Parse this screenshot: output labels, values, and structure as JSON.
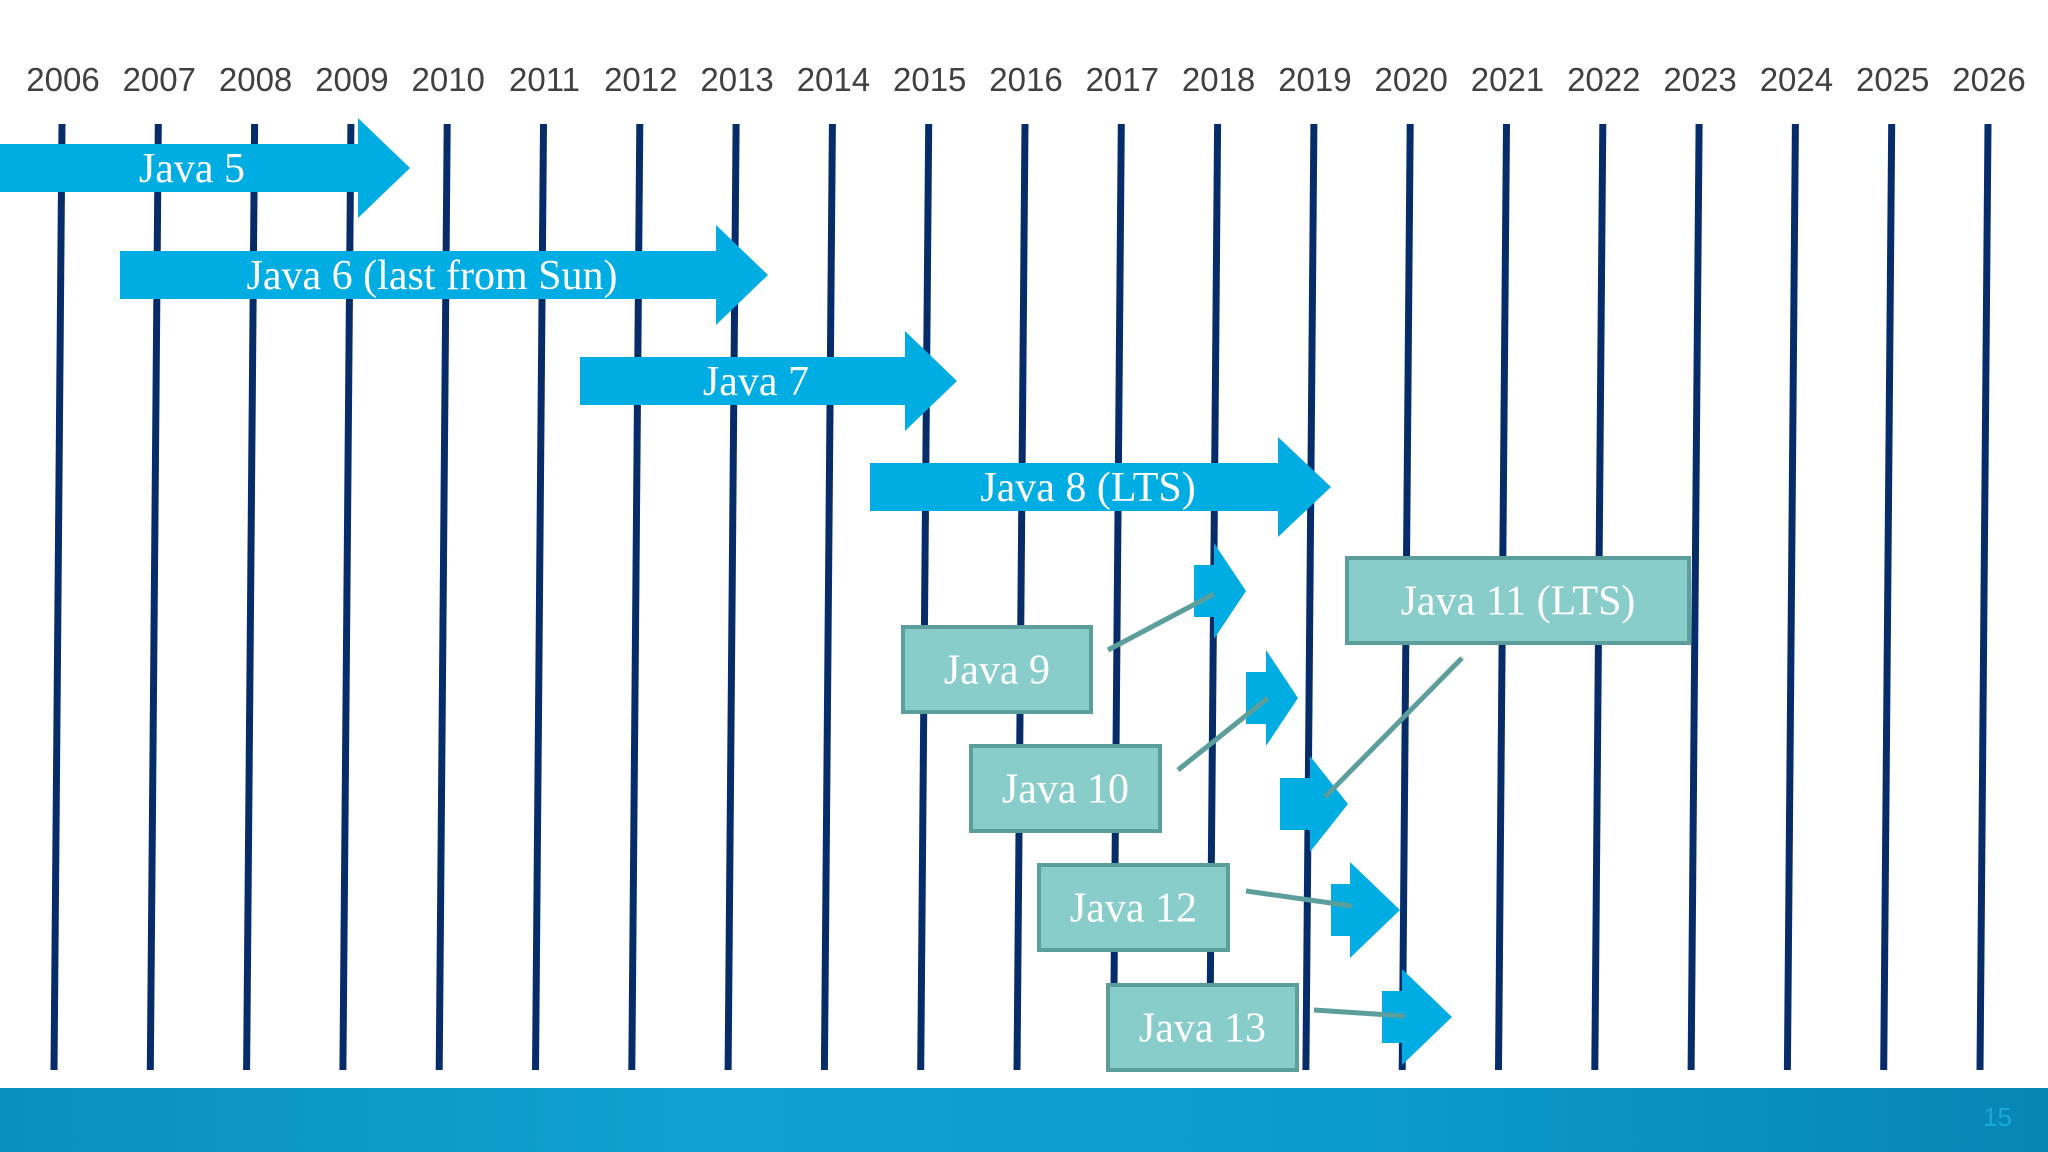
{
  "timeline": {
    "years": [
      "2006",
      "2007",
      "2008",
      "2009",
      "2010",
      "2011",
      "2012",
      "2013",
      "2014",
      "2015",
      "2016",
      "2017",
      "2018",
      "2019",
      "2020",
      "2021",
      "2022",
      "2023",
      "2024",
      "2025",
      "2026"
    ],
    "releases_long": [
      {
        "name": "java-5",
        "label": "Java 5"
      },
      {
        "name": "java-6",
        "label": "Java 6 (last from Sun)"
      },
      {
        "name": "java-7",
        "label": "Java 7"
      },
      {
        "name": "java-8",
        "label": "Java 8 (LTS)"
      }
    ],
    "releases_short": [
      {
        "name": "java-9",
        "label": "Java 9"
      },
      {
        "name": "java-10",
        "label": "Java 10"
      },
      {
        "name": "java-11",
        "label": "Java 11 (LTS)"
      },
      {
        "name": "java-12",
        "label": "Java 12"
      },
      {
        "name": "java-13",
        "label": "Java 13"
      }
    ]
  },
  "colors": {
    "gridline": "#062c6a",
    "arrow": "#00ade2",
    "callout_fill": "#88cdca",
    "callout_border": "#5b9e9b",
    "connector": "#5b9e9b"
  },
  "footer": {
    "slide_number": "15"
  }
}
